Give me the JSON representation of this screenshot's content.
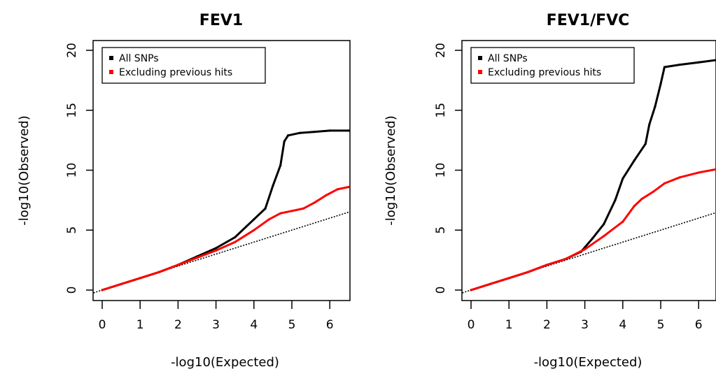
{
  "chart_data": [
    {
      "type": "scatter",
      "title": "FEV1",
      "xlabel": "-log10(Expected)",
      "ylabel": "-log10(Observed)",
      "xlim": [
        0,
        6.5
      ],
      "ylim": [
        0,
        20
      ],
      "x_ticks": [
        "0",
        "1",
        "2",
        "3",
        "4",
        "5",
        "6"
      ],
      "y_ticks": [
        "0",
        "5",
        "10",
        "15",
        "20"
      ],
      "legend": {
        "position": "top-left",
        "entries": [
          "All SNPs",
          "Excluding previous hits"
        ]
      },
      "reference_line": {
        "slope": 1,
        "intercept": 0,
        "style": "dotted"
      },
      "series": [
        {
          "name": "All SNPs",
          "color": "#000000",
          "points": [
            [
              0,
              0
            ],
            [
              0.5,
              0.5
            ],
            [
              1,
              1
            ],
            [
              1.5,
              1.5
            ],
            [
              2,
              2.1
            ],
            [
              2.5,
              2.8
            ],
            [
              3,
              3.5
            ],
            [
              3.5,
              4.4
            ],
            [
              4,
              5.9
            ],
            [
              4.3,
              6.8
            ],
            [
              4.5,
              8.7
            ],
            [
              4.7,
              10.4
            ],
            [
              4.8,
              12.4
            ],
            [
              4.9,
              12.9
            ],
            [
              5.2,
              13.1
            ],
            [
              5.6,
              13.2
            ],
            [
              6.0,
              13.3
            ],
            [
              6.5,
              13.3
            ]
          ]
        },
        {
          "name": "Excluding previous hits",
          "color": "#ff0000",
          "points": [
            [
              0,
              0
            ],
            [
              0.5,
              0.5
            ],
            [
              1,
              1
            ],
            [
              1.5,
              1.5
            ],
            [
              2,
              2.1
            ],
            [
              2.5,
              2.7
            ],
            [
              3,
              3.3
            ],
            [
              3.5,
              4.0
            ],
            [
              4,
              5.0
            ],
            [
              4.4,
              5.9
            ],
            [
              4.7,
              6.4
            ],
            [
              5.0,
              6.6
            ],
            [
              5.3,
              6.8
            ],
            [
              5.6,
              7.3
            ],
            [
              5.9,
              7.9
            ],
            [
              6.2,
              8.4
            ],
            [
              6.5,
              8.6
            ]
          ]
        }
      ]
    },
    {
      "type": "scatter",
      "title": "FEV1/FVC",
      "xlabel": "-log10(Expected)",
      "ylabel": "-log10(Observed)",
      "xlim": [
        0,
        6.5
      ],
      "ylim": [
        0,
        20
      ],
      "x_ticks": [
        "0",
        "1",
        "2",
        "3",
        "4",
        "5",
        "6"
      ],
      "y_ticks": [
        "0",
        "5",
        "10",
        "15",
        "20"
      ],
      "legend": {
        "position": "top-left",
        "entries": [
          "All SNPs",
          "Excluding previous hits"
        ]
      },
      "reference_line": {
        "slope": 1,
        "intercept": 0,
        "style": "dotted"
      },
      "series": [
        {
          "name": "All SNPs",
          "color": "#000000",
          "points": [
            [
              0,
              0
            ],
            [
              0.5,
              0.5
            ],
            [
              1,
              1
            ],
            [
              1.5,
              1.5
            ],
            [
              2,
              2.1
            ],
            [
              2.5,
              2.6
            ],
            [
              2.9,
              3.2
            ],
            [
              3.2,
              4.3
            ],
            [
              3.5,
              5.5
            ],
            [
              3.8,
              7.5
            ],
            [
              4.0,
              9.3
            ],
            [
              4.3,
              10.8
            ],
            [
              4.6,
              12.2
            ],
            [
              4.7,
              13.8
            ],
            [
              4.85,
              15.3
            ],
            [
              5.0,
              17.2
            ],
            [
              5.1,
              18.6
            ],
            [
              5.5,
              18.8
            ],
            [
              6.0,
              19.0
            ],
            [
              6.5,
              19.2
            ]
          ]
        },
        {
          "name": "Excluding previous hits",
          "color": "#ff0000",
          "points": [
            [
              0,
              0
            ],
            [
              0.5,
              0.5
            ],
            [
              1,
              1
            ],
            [
              1.5,
              1.5
            ],
            [
              2,
              2.1
            ],
            [
              2.5,
              2.6
            ],
            [
              3,
              3.4
            ],
            [
              3.5,
              4.5
            ],
            [
              4,
              5.7
            ],
            [
              4.3,
              7.0
            ],
            [
              4.5,
              7.6
            ],
            [
              4.8,
              8.2
            ],
            [
              5.1,
              8.9
            ],
            [
              5.5,
              9.4
            ],
            [
              6.0,
              9.8
            ],
            [
              6.5,
              10.1
            ]
          ]
        }
      ]
    }
  ]
}
